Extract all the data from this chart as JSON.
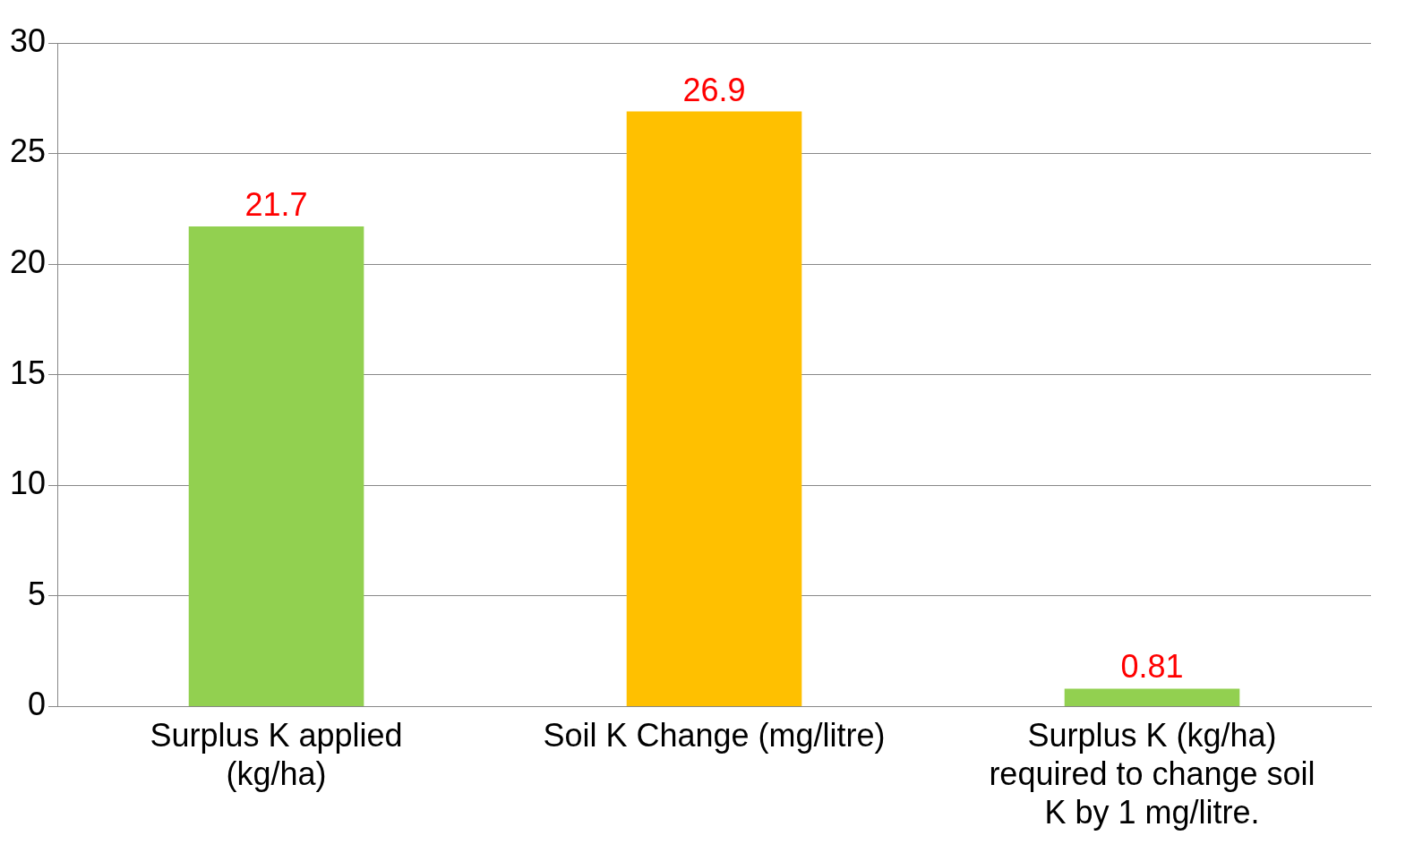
{
  "chart_data": {
    "type": "bar",
    "categories": [
      "Surplus K applied (kg/ha)",
      "Soil K Change (mg/litre)",
      "Surplus K (kg/ha) required to change soil K by 1 mg/litre."
    ],
    "values": [
      21.7,
      26.9,
      0.81
    ],
    "colors": [
      "#92d050",
      "#ffc000",
      "#92d050"
    ],
    "ylim": [
      0,
      30
    ],
    "yticks": [
      0,
      5,
      10,
      15,
      20,
      25,
      30
    ],
    "grid": "y",
    "data_labels": true
  }
}
